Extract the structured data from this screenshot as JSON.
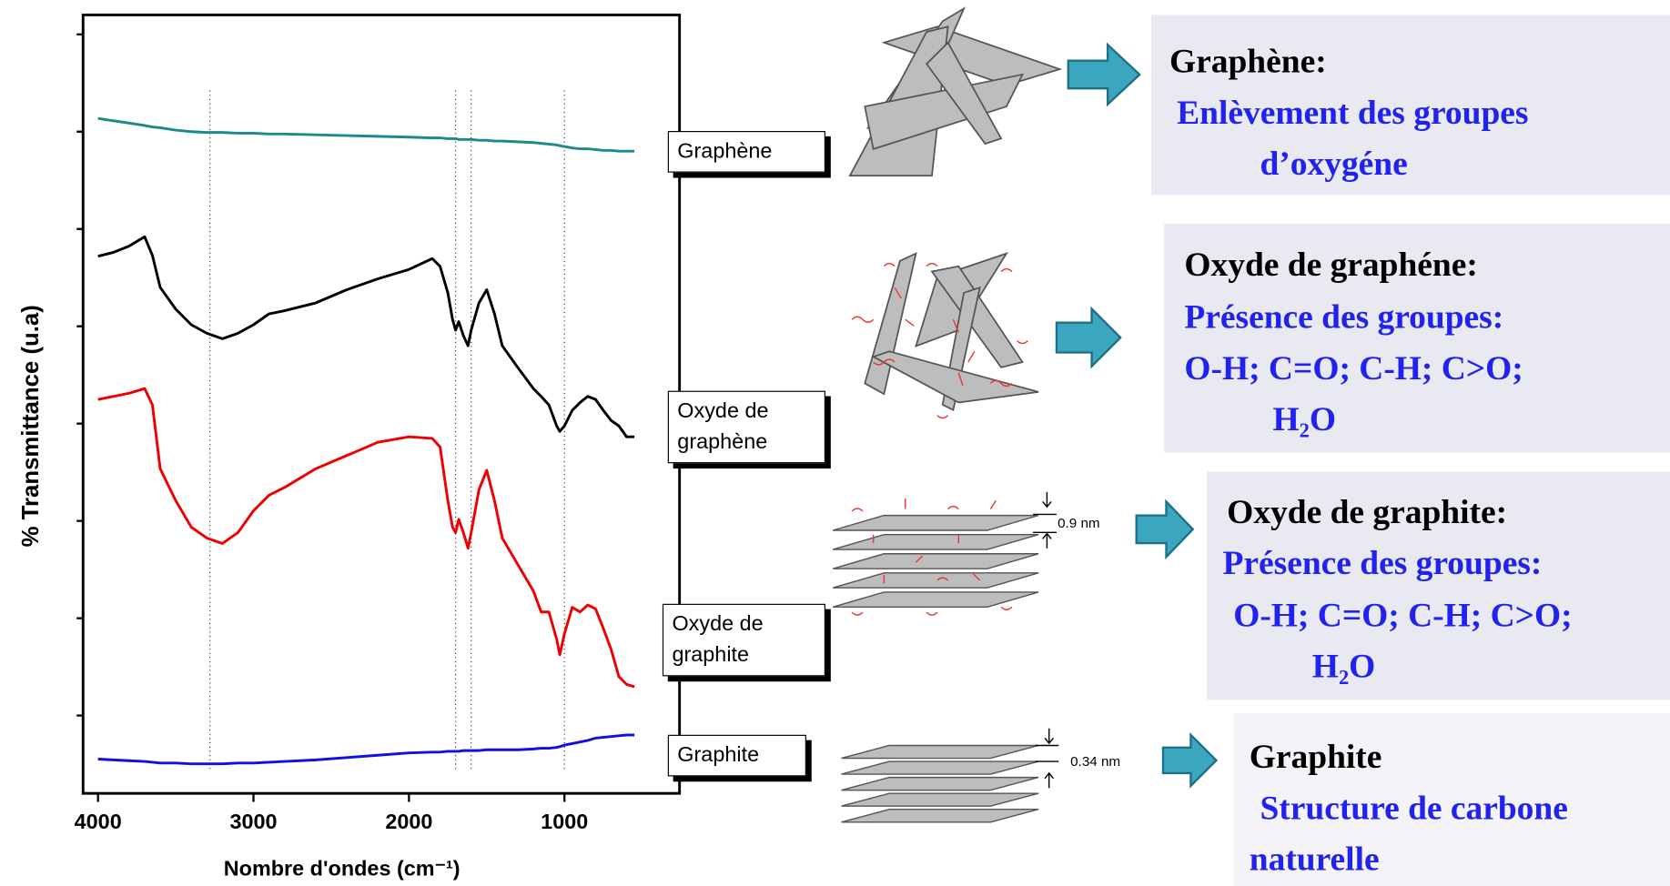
{
  "chart_data": {
    "type": "line",
    "x_label": "Nombre d'ondes (cm⁻¹)",
    "y_label": "% Transmittance (u.a)",
    "x": [
      4000,
      3900,
      3800,
      3700,
      3650,
      3600,
      3500,
      3400,
      3300,
      3200,
      3100,
      3000,
      2900,
      2800,
      2600,
      2400,
      2200,
      2000,
      1850,
      1800,
      1750,
      1720,
      1700,
      1680,
      1650,
      1620,
      1600,
      1550,
      1500,
      1450,
      1400,
      1300,
      1200,
      1150,
      1100,
      1050,
      1030,
      1000,
      950,
      900,
      850,
      800,
      750,
      700,
      650,
      600,
      550
    ],
    "series": [
      {
        "name": "Graphène",
        "color": "#1a8a8a",
        "values": [
          86.7,
          86.4,
          86.1,
          85.8,
          85.6,
          85.5,
          85.2,
          85,
          84.9,
          84.9,
          84.8,
          84.8,
          84.7,
          84.7,
          84.6,
          84.5,
          84.4,
          84.3,
          84.2,
          84.2,
          84.1,
          84.1,
          84.1,
          84.0,
          84.0,
          84.0,
          84.0,
          83.9,
          83.9,
          83.8,
          83.8,
          83.7,
          83.6,
          83.5,
          83.4,
          83.3,
          83.2,
          83.1,
          82.9,
          82.8,
          82.8,
          82.7,
          82.6,
          82.6,
          82.5,
          82.5,
          82.5
        ]
      },
      {
        "name": "Oxyde de graphène",
        "color": "#000000",
        "values": [
          69,
          69.5,
          70.3,
          71.5,
          69.1,
          65,
          62.2,
          60.2,
          59.1,
          58.4,
          59.1,
          60.2,
          61.6,
          62,
          63,
          64.7,
          66.1,
          67.3,
          68.7,
          67.7,
          64.3,
          60.9,
          59.5,
          60.6,
          58.8,
          57.5,
          59.5,
          63,
          64.7,
          61.6,
          57.5,
          54.7,
          52,
          51,
          49.9,
          47.2,
          46.5,
          47.2,
          49.2,
          50.2,
          51,
          50.6,
          49.2,
          47.9,
          47.2,
          45.8,
          45.8
        ]
      },
      {
        "name": "Oxyde de graphite",
        "color": "#ee0000",
        "values": [
          50.6,
          51,
          51.4,
          52,
          49.9,
          41.7,
          37.6,
          34.2,
          32.8,
          32.1,
          33.5,
          36.3,
          38.3,
          39.3,
          41.7,
          43.4,
          45.1,
          45.8,
          45.6,
          44.5,
          37.6,
          34.2,
          33.5,
          35.2,
          33.5,
          31.5,
          33.5,
          39,
          41.5,
          37.6,
          32.8,
          29.4,
          26,
          23.3,
          23.3,
          19.8,
          17.8,
          20.5,
          23.9,
          23.3,
          24.2,
          23.7,
          21.2,
          18.5,
          15,
          14,
          13.7
        ]
      },
      {
        "name": "Graphite",
        "color": "#1010e0",
        "values": [
          4.4,
          4.3,
          4.2,
          4.1,
          4.0,
          3.9,
          3.9,
          3.8,
          3.8,
          3.8,
          3.9,
          3.9,
          4.0,
          4.1,
          4.3,
          4.6,
          4.9,
          5.2,
          5.3,
          5.3,
          5.4,
          5.4,
          5.4,
          5.4,
          5.5,
          5.5,
          5.5,
          5.5,
          5.6,
          5.6,
          5.6,
          5.6,
          5.7,
          5.8,
          5.8,
          5.9,
          6.0,
          6.2,
          6.4,
          6.6,
          6.8,
          7.1,
          7.2,
          7.3,
          7.4,
          7.5,
          7.5
        ]
      }
    ],
    "xlim": [
      4096,
      260
    ],
    "xticks": [
      4000,
      3000,
      2000,
      1000
    ],
    "ylim": [
      0,
      100
    ],
    "yticks": [
      10,
      22.5,
      35,
      47.5,
      60,
      72.5,
      85,
      97.5
    ],
    "reference_lines": [
      3280,
      1700,
      1600,
      1000
    ]
  },
  "panels": [
    {
      "title": "Graphène:",
      "lines": [
        "Enlèvement des groupes",
        "d’oxygéne"
      ]
    },
    {
      "title": "Oxyde de graphéne:",
      "lines": [
        "Présence des groupes:",
        "O-H; C=O; C-H; C>O;",
        "H₂O"
      ]
    },
    {
      "title": "Oxyde de graphite:",
      "lines": [
        "Présence des groupes:",
        "O-H; C=O; C-H; C>O;",
        "H₂O"
      ]
    },
    {
      "title": "Graphite",
      "lines": [
        "Structure de carbone",
        "naturelle"
      ]
    }
  ],
  "spacings": [
    "0.9 nm",
    "0.34 nm"
  ]
}
